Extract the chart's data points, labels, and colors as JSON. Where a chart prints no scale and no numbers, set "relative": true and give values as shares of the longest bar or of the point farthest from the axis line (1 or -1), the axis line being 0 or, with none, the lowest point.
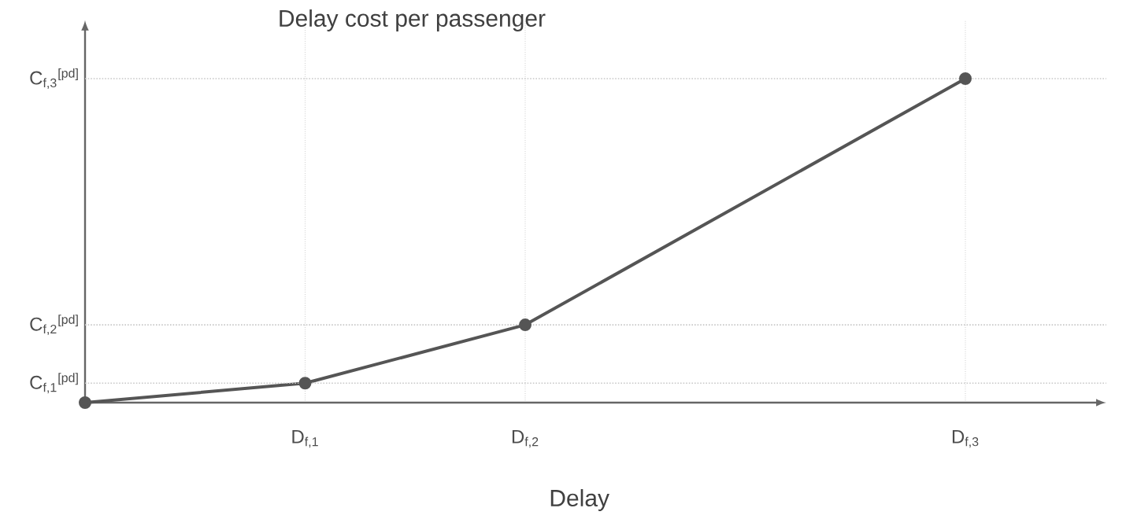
{
  "chart_data": {
    "type": "line",
    "title": "Delay cost per passenger",
    "xlabel": "Delay",
    "relative": true,
    "categories": [
      null,
      "D$_{f,1}$",
      "D$_{f,2}$",
      null,
      "D$_{f,3}$"
    ],
    "series": [
      {
        "color": "#555555",
        "values": [
          0,
          0.06,
          0.24,
          null,
          1
        ]
      }
    ],
    "ref_lines": [
      {
        "axis": "y",
        "value": 0.06,
        "label": "C$_{f,1}$$^{[pd]}$",
        "color": "#c8c8c8",
        "line_style": "dotted"
      },
      {
        "axis": "y",
        "value": 0.24,
        "label": "C$_{f,2}$$^{[pd]}$",
        "color": "#c8c8c8",
        "line_style": "dotted"
      },
      {
        "axis": "y",
        "value": 1,
        "label": "C$_{f,3}$$^{[pd]}$",
        "color": "#c8c8c8",
        "line_style": "dotted"
      }
    ],
    "grid": "x",
    "marker": "circle",
    "line_style": "solid"
  }
}
